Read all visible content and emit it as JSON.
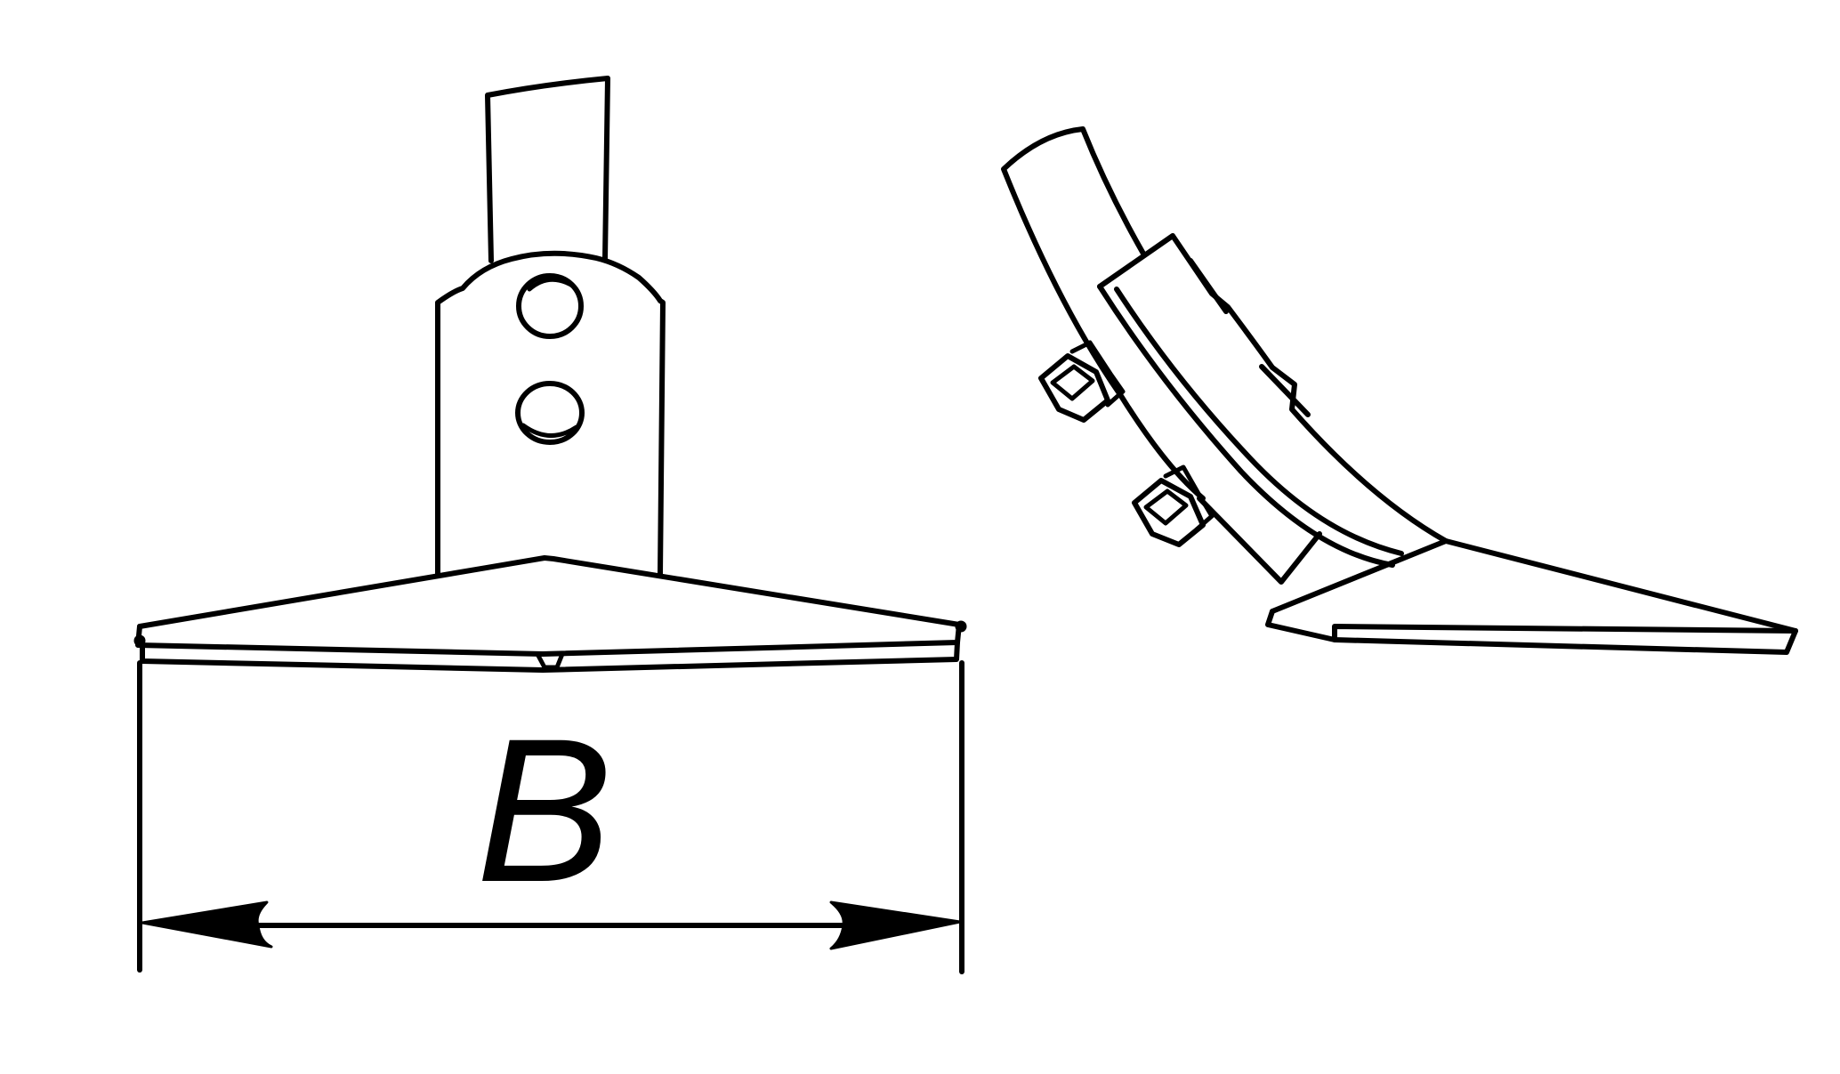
{
  "figure": {
    "dimension_label": "B"
  }
}
